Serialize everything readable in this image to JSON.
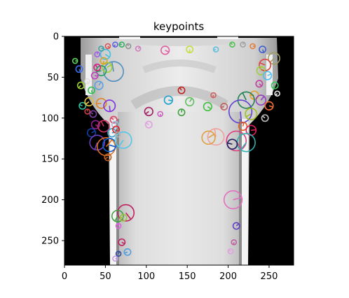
{
  "chart_data": {
    "type": "scatter",
    "title": "keypoints",
    "xlabel": "",
    "ylabel": "",
    "xlim": [
      0,
      280
    ],
    "ylim": [
      280,
      0
    ],
    "x_ticks": [
      0,
      50,
      100,
      150,
      200,
      250
    ],
    "y_ticks": [
      0,
      50,
      100,
      150,
      200,
      250
    ],
    "y_inverted": true,
    "grid": false,
    "legend": "none",
    "background_image": "grayscale rendering of a garment (shirt) on black background",
    "colors": {
      "image_black": "#000000",
      "garment_light": "#e6e6e6",
      "garment_mid": "#cfcfcf",
      "garment_dark": "#9a9a9a"
    },
    "keypoints": [
      {
        "x": 13,
        "y": 30,
        "r": 3,
        "color": "#5ad35a"
      },
      {
        "x": 18,
        "y": 40,
        "r": 4,
        "color": "#3a6df0"
      },
      {
        "x": 20,
        "y": 60,
        "r": 4,
        "color": "#9acd32"
      },
      {
        "x": 22,
        "y": 85,
        "r": 4,
        "color": "#30c0a0"
      },
      {
        "x": 28,
        "y": 92,
        "r": 3,
        "color": "#d04040"
      },
      {
        "x": 33,
        "y": 118,
        "r": 5,
        "color": "#1040a0"
      },
      {
        "x": 38,
        "y": 108,
        "r": 5,
        "color": "#902090"
      },
      {
        "x": 40,
        "y": 130,
        "r": 9,
        "color": "#7040c0"
      },
      {
        "x": 45,
        "y": 82,
        "r": 6,
        "color": "#e08020"
      },
      {
        "x": 48,
        "y": 110,
        "r": 7,
        "color": "#d03060"
      },
      {
        "x": 51,
        "y": 135,
        "r": 11,
        "color": "#e07020"
      },
      {
        "x": 55,
        "y": 133,
        "r": 8,
        "color": "#1060d0"
      },
      {
        "x": 55,
        "y": 85,
        "r": 7,
        "color": "#8030e0"
      },
      {
        "x": 53,
        "y": 148,
        "r": 4,
        "color": "#c06020"
      },
      {
        "x": 60,
        "y": 102,
        "r": 4,
        "color": "#e04060"
      },
      {
        "x": 62,
        "y": 108,
        "r": 4,
        "color": "#a0c0e0"
      },
      {
        "x": 58,
        "y": 118,
        "r": 5,
        "color": "#30a0d0"
      },
      {
        "x": 63,
        "y": 114,
        "r": 4,
        "color": "#e02020"
      },
      {
        "x": 72,
        "y": 127,
        "r": 10,
        "color": "#50c8e8"
      },
      {
        "x": 65,
        "y": 120,
        "r": 3,
        "color": "#b0b0b0"
      },
      {
        "x": 60,
        "y": 43,
        "r": 12,
        "color": "#5090c0"
      },
      {
        "x": 52,
        "y": 38,
        "r": 6,
        "color": "#a0d030"
      },
      {
        "x": 50,
        "y": 22,
        "r": 6,
        "color": "#40c0e0"
      },
      {
        "x": 48,
        "y": 30,
        "r": 4,
        "color": "#e0a020"
      },
      {
        "x": 45,
        "y": 42,
        "r": 6,
        "color": "#20a060"
      },
      {
        "x": 40,
        "y": 38,
        "r": 4,
        "color": "#d02080"
      },
      {
        "x": 42,
        "y": 60,
        "r": 5,
        "color": "#60a0e0"
      },
      {
        "x": 37,
        "y": 48,
        "r": 4,
        "color": "#c040c0"
      },
      {
        "x": 33,
        "y": 66,
        "r": 4,
        "color": "#30c050"
      },
      {
        "x": 30,
        "y": 80,
        "r": 5,
        "color": "#e0c040"
      },
      {
        "x": 35,
        "y": 95,
        "r": 4,
        "color": "#8040a0"
      },
      {
        "x": 40,
        "y": 22,
        "r": 3,
        "color": "#a060e0"
      },
      {
        "x": 45,
        "y": 15,
        "r": 3,
        "color": "#40a0a0"
      },
      {
        "x": 53,
        "y": 12,
        "r": 3,
        "color": "#e05050"
      },
      {
        "x": 62,
        "y": 10,
        "r": 3,
        "color": "#6060e0"
      },
      {
        "x": 70,
        "y": 10,
        "r": 3,
        "color": "#30b060"
      },
      {
        "x": 78,
        "y": 12,
        "r": 3,
        "color": "#909090"
      },
      {
        "x": 90,
        "y": 15,
        "r": 3,
        "color": "#d080c0"
      },
      {
        "x": 123,
        "y": 17,
        "r": 5,
        "color": "#e060a0"
      },
      {
        "x": 153,
        "y": 16,
        "r": 4,
        "color": "#c0e040"
      },
      {
        "x": 185,
        "y": 16,
        "r": 3,
        "color": "#60c0e0"
      },
      {
        "x": 205,
        "y": 10,
        "r": 3,
        "color": "#50c050"
      },
      {
        "x": 218,
        "y": 10,
        "r": 3,
        "color": "#a0a0a0"
      },
      {
        "x": 230,
        "y": 12,
        "r": 3,
        "color": "#e08040"
      },
      {
        "x": 242,
        "y": 16,
        "r": 4,
        "color": "#4060d0"
      },
      {
        "x": 256,
        "y": 27,
        "r": 7,
        "color": "#a0a060"
      },
      {
        "x": 245,
        "y": 35,
        "r": 7,
        "color": "#e04040"
      },
      {
        "x": 240,
        "y": 42,
        "r": 5,
        "color": "#a0d040"
      },
      {
        "x": 248,
        "y": 48,
        "r": 5,
        "color": "#50c0f0"
      },
      {
        "x": 238,
        "y": 58,
        "r": 4,
        "color": "#c040a0"
      },
      {
        "x": 257,
        "y": 60,
        "r": 4,
        "color": "#40c060"
      },
      {
        "x": 232,
        "y": 72,
        "r": 5,
        "color": "#e0a030"
      },
      {
        "x": 222,
        "y": 78,
        "r": 10,
        "color": "#208050"
      },
      {
        "x": 240,
        "y": 78,
        "r": 6,
        "color": "#9040c0"
      },
      {
        "x": 250,
        "y": 85,
        "r": 5,
        "color": "#f07030"
      },
      {
        "x": 215,
        "y": 92,
        "r": 14,
        "color": "#6040d0"
      },
      {
        "x": 228,
        "y": 95,
        "r": 7,
        "color": "#a0c020"
      },
      {
        "x": 245,
        "y": 100,
        "r": 4,
        "color": "#c0c0c0"
      },
      {
        "x": 218,
        "y": 110,
        "r": 5,
        "color": "#e06020"
      },
      {
        "x": 228,
        "y": 115,
        "r": 6,
        "color": "#e02060"
      },
      {
        "x": 210,
        "y": 128,
        "r": 12,
        "color": "#e04080"
      },
      {
        "x": 222,
        "y": 130,
        "r": 11,
        "color": "#30b0b0"
      },
      {
        "x": 205,
        "y": 132,
        "r": 6,
        "color": "#202060"
      },
      {
        "x": 185,
        "y": 123,
        "r": 10,
        "color": "#f0a0a0"
      },
      {
        "x": 176,
        "y": 124,
        "r": 8,
        "color": "#e0a040"
      },
      {
        "x": 175,
        "y": 86,
        "r": 5,
        "color": "#40c040"
      },
      {
        "x": 182,
        "y": 72,
        "r": 3,
        "color": "#d06060"
      },
      {
        "x": 195,
        "y": 86,
        "r": 4,
        "color": "#c06060"
      },
      {
        "x": 143,
        "y": 66,
        "r": 4,
        "color": "#c02020"
      },
      {
        "x": 153,
        "y": 80,
        "r": 5,
        "color": "#60c060"
      },
      {
        "x": 127,
        "y": 78,
        "r": 5,
        "color": "#20a0d0"
      },
      {
        "x": 117,
        "y": 95,
        "r": 3,
        "color": "#d060c0"
      },
      {
        "x": 103,
        "y": 92,
        "r": 5,
        "color": "#a02060"
      },
      {
        "x": 103,
        "y": 108,
        "r": 4,
        "color": "#e0a0e0"
      },
      {
        "x": 143,
        "y": 93,
        "r": 4,
        "color": "#40a040"
      },
      {
        "x": 206,
        "y": 200,
        "r": 11,
        "color": "#e070c0"
      },
      {
        "x": 75,
        "y": 216,
        "r": 10,
        "color": "#c02060"
      },
      {
        "x": 65,
        "y": 220,
        "r": 7,
        "color": "#40a040"
      },
      {
        "x": 72,
        "y": 222,
        "r": 4,
        "color": "#a0c040"
      },
      {
        "x": 66,
        "y": 232,
        "r": 3,
        "color": "#e060e0"
      },
      {
        "x": 210,
        "y": 232,
        "r": 4,
        "color": "#6040c0"
      },
      {
        "x": 70,
        "y": 252,
        "r": 4,
        "color": "#c02060"
      },
      {
        "x": 207,
        "y": 252,
        "r": 3,
        "color": "#c060a0"
      },
      {
        "x": 77,
        "y": 264,
        "r": 4,
        "color": "#50a0e0"
      },
      {
        "x": 203,
        "y": 263,
        "r": 3,
        "color": "#e0a0e0"
      },
      {
        "x": 66,
        "y": 266,
        "r": 3,
        "color": "#3050a0"
      },
      {
        "x": 62,
        "y": 272,
        "r": 3,
        "color": "#c0a0e0"
      },
      {
        "x": 28,
        "y": 55,
        "r": 3,
        "color": "#e0e0e0"
      },
      {
        "x": 260,
        "y": 70,
        "r": 3,
        "color": "#f0f0f0"
      }
    ]
  }
}
